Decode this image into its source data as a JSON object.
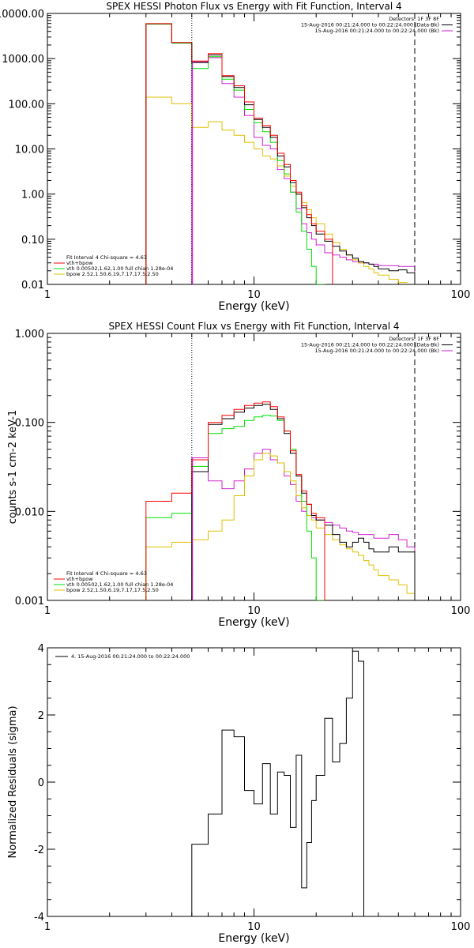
{
  "colors": {
    "data": "#000000",
    "vth": "#00e000",
    "fit": "#ff0000",
    "bpow": "#e0c000",
    "bk": "#d020d0"
  },
  "chart_data": [
    {
      "type": "line",
      "title": "SPEX HESSI Photon Flux vs Energy with Fit Function, Interval 4",
      "xlabel": "Energy (keV)",
      "ylabel": "",
      "xscale": "log",
      "yscale": "log",
      "xlim": [
        1,
        100
      ],
      "ylim": [
        0.01,
        10000
      ],
      "xticks": [
        "1",
        "10",
        "100"
      ],
      "yticks": [
        {
          "v": 0.01,
          "t": "0.01"
        },
        {
          "v": 0.1,
          "t": "0.10"
        },
        {
          "v": 1,
          "t": "1.00"
        },
        {
          "v": 10,
          "t": "10.00"
        },
        {
          "v": 100,
          "t": "100.00"
        },
        {
          "v": 1000,
          "t": "1000.00"
        },
        {
          "v": 10000,
          "t": "10000.00"
        }
      ],
      "vlines": [
        {
          "x": 5,
          "style": "dotted"
        },
        {
          "x": 60,
          "style": "dashed"
        }
      ],
      "magenta_line_x": 5,
      "legend_top": {
        "lines": [
          "Detectors: 1F 3F 8F",
          "15-Aug-2016 00:21:24.000 to 00:22:24.000 (Data-Bk)",
          "15-Aug-2016 00:21:24.000 to 00:22:24.000 (Bk)"
        ],
        "swatches": [
          "",
          "data",
          "bk"
        ]
      },
      "legend_bottom": {
        "lines": [
          "Fit Interval  4   Chi-square = 4.63",
          "vth+bpow",
          "vth 0.00502,1.62,1.00  full chian 1.28e-04",
          "bpow 2.52,1.50,6.19,7.17,17.5,2.50"
        ],
        "swatches": [
          "",
          "fit",
          "vth",
          "bpow"
        ]
      },
      "bin_edges": [
        3,
        4,
        5,
        6,
        7,
        8,
        9,
        10,
        11,
        12,
        13,
        14,
        15,
        16,
        17,
        18,
        19,
        20,
        22,
        24,
        26,
        28,
        30,
        32,
        34,
        36,
        38,
        40,
        45,
        50,
        55,
        60
      ],
      "series": [
        {
          "key": "bk",
          "color": "bk",
          "values": [
            null,
            null,
            850,
            1050,
            280,
            140,
            55,
            18,
            12,
            10,
            3.5,
            2.2,
            1.1,
            0.48,
            0.22,
            0.14,
            0.1,
            0.075,
            0.05,
            0.045,
            0.04,
            0.035,
            0.032,
            0.03,
            0.03,
            0.028,
            0.028,
            0.026,
            0.026,
            0.025,
            0.025
          ]
        },
        {
          "key": "bpow",
          "color": "bpow",
          "values": [
            140,
            100,
            30,
            40,
            26,
            20,
            14,
            10,
            7,
            6,
            4.2,
            2.5,
            1.5,
            1.0,
            0.65,
            0.45,
            0.3,
            0.22,
            0.13,
            0.085,
            0.06,
            0.045,
            0.035,
            0.03,
            0.025,
            0.022,
            0.018,
            0.016,
            0.013,
            0.011,
            0.009
          ]
        },
        {
          "key": "vth",
          "color": "vth",
          "values": [
            5800,
            2200,
            600,
            1100,
            350,
            200,
            75,
            38,
            24,
            14,
            5.5,
            2.8,
            1.1,
            0.4,
            0.15,
            0.06,
            0.025,
            0.01,
            null,
            null,
            null,
            null,
            null,
            null,
            null,
            null,
            null,
            null,
            null,
            null,
            null
          ]
        },
        {
          "key": "data",
          "color": "data",
          "values": [
            5900,
            2250,
            820,
            1200,
            400,
            230,
            95,
            45,
            30,
            18,
            7,
            4,
            1.8,
            1.0,
            0.5,
            0.3,
            0.2,
            0.13,
            0.09,
            0.07,
            0.055,
            0.045,
            0.038,
            0.032,
            0.03,
            0.028,
            0.025,
            0.022,
            0.02,
            0.021,
            0.018
          ]
        },
        {
          "key": "fit",
          "color": "fit",
          "values": [
            5950,
            2280,
            880,
            1300,
            420,
            250,
            110,
            48,
            33,
            20,
            8,
            4.5,
            2.0,
            1.1,
            0.55,
            0.35,
            0.22,
            0.15,
            0.1,
            null,
            null,
            null,
            null,
            null,
            null,
            null,
            null,
            null,
            null,
            null,
            null
          ]
        }
      ]
    },
    {
      "type": "line",
      "title": "SPEX HESSI Count Flux vs Energy with Fit Function, Interval 4",
      "xlabel": "Energy (keV)",
      "ylabel": "counts s-1 cm-2 keV-1",
      "xscale": "log",
      "yscale": "log",
      "xlim": [
        1,
        100
      ],
      "ylim": [
        0.001,
        1
      ],
      "xticks": [
        "1",
        "10",
        "100"
      ],
      "yticks": [
        {
          "v": 0.001,
          "t": "0.001"
        },
        {
          "v": 0.01,
          "t": "0.010"
        },
        {
          "v": 0.1,
          "t": "0.100"
        },
        {
          "v": 1,
          "t": "1.000"
        }
      ],
      "vlines": [
        {
          "x": 5,
          "style": "dotted"
        },
        {
          "x": 60,
          "style": "dashed"
        }
      ],
      "magenta_line_x": 5,
      "legend_top": {
        "lines": [
          "Detectors: 1F 3F 8F",
          "15-Aug-2016 00:21:24.000 to 00:22:24.000 (Data-Bk)",
          "15-Aug-2016 00:21:24.000 to 00:22:24.000 (Bk)"
        ],
        "swatches": [
          "",
          "data",
          "bk"
        ]
      },
      "legend_bottom": {
        "lines": [
          "Fit Interval  4   Chi-square = 4.63",
          "vth+bpow",
          "vth 0.00502,1.62,1.00  full chian 1.28e-04",
          "bpow 2.52,1.50,6.19,7.17,17.5,2.50"
        ],
        "swatches": [
          "",
          "fit",
          "vth",
          "bpow"
        ]
      },
      "bin_edges": [
        3,
        4,
        5,
        6,
        7,
        8,
        9,
        10,
        11,
        12,
        13,
        14,
        15,
        16,
        17,
        18,
        19,
        20,
        22,
        24,
        26,
        28,
        30,
        32,
        34,
        36,
        38,
        40,
        45,
        50,
        55,
        60,
        65,
        70
      ],
      "series": [
        {
          "key": "bk",
          "color": "bk",
          "values": [
            null,
            null,
            0.04,
            0.022,
            0.018,
            0.022,
            0.03,
            0.045,
            0.05,
            0.038,
            0.035,
            0.025,
            0.02,
            0.013,
            0.01,
            0.009,
            0.0085,
            0.008,
            0.0075,
            0.007,
            0.0065,
            0.006,
            0.0058,
            0.0055,
            0.0055,
            0.0055,
            0.005,
            0.005,
            0.0055,
            0.0048,
            0.004,
            null,
            null
          ]
        },
        {
          "key": "bpow",
          "color": "bpow",
          "values": [
            0.004,
            0.0045,
            0.0048,
            0.006,
            0.008,
            0.015,
            0.025,
            0.038,
            0.045,
            0.042,
            0.035,
            0.028,
            0.022,
            0.015,
            0.011,
            0.009,
            0.008,
            0.0065,
            0.0055,
            0.0048,
            0.0042,
            0.0038,
            0.0035,
            0.0032,
            0.0028,
            0.0025,
            0.0022,
            0.0019,
            0.0017,
            0.0015,
            0.0012,
            0.0009,
            0.0007
          ]
        },
        {
          "key": "vth",
          "color": "vth",
          "values": [
            0.0085,
            0.0095,
            0.032,
            0.075,
            0.085,
            0.09,
            0.105,
            0.115,
            0.12,
            0.118,
            0.105,
            0.08,
            0.05,
            0.025,
            0.013,
            0.006,
            0.003,
            0.001,
            null,
            null,
            null,
            null,
            null,
            null,
            null,
            null,
            null,
            null,
            null,
            null,
            null,
            null,
            null
          ]
        },
        {
          "key": "data",
          "color": "data",
          "values": [
            null,
            null,
            0.028,
            0.095,
            0.11,
            0.13,
            0.145,
            0.155,
            0.16,
            0.14,
            0.11,
            0.075,
            0.045,
            0.025,
            0.016,
            0.012,
            0.009,
            0.008,
            0.007,
            0.0055,
            0.0045,
            0.004,
            0.0045,
            0.005,
            0.0045,
            0.0038,
            0.0035,
            0.0035,
            0.004,
            0.0035,
            0.0035,
            null,
            null
          ]
        },
        {
          "key": "fit",
          "color": "fit",
          "values": [
            0.013,
            0.016,
            0.038,
            0.1,
            0.12,
            0.14,
            0.155,
            0.165,
            0.17,
            0.15,
            0.115,
            0.08,
            0.048,
            0.026,
            0.017,
            0.012,
            0.0095,
            0.0085,
            null,
            null,
            null,
            null,
            null,
            null,
            null,
            null,
            null,
            null,
            null,
            null,
            null,
            null,
            null
          ]
        }
      ]
    },
    {
      "type": "line",
      "title": "",
      "xlabel": "Energy (keV)",
      "ylabel": "Normalized Residuals (sigma)",
      "xscale": "log",
      "yscale": "linear",
      "xlim": [
        1,
        100
      ],
      "ylim": [
        -4,
        4
      ],
      "xticks": [
        "1",
        "10",
        "100"
      ],
      "yticks": [
        {
          "v": -4,
          "t": "-4"
        },
        {
          "v": -2,
          "t": "-2"
        },
        {
          "v": 0,
          "t": "0"
        },
        {
          "v": 2,
          "t": "2"
        },
        {
          "v": 4,
          "t": "4"
        }
      ],
      "legend_top": {
        "lines": [
          "4. 15-Aug-2016 00:21:24.000 to 00:22:24.000"
        ],
        "swatches": [
          "data"
        ]
      },
      "bin_edges": [
        5,
        6,
        7,
        8,
        9,
        10,
        11,
        12,
        13,
        14,
        15,
        16,
        17,
        18,
        19,
        20,
        22,
        24,
        26,
        28,
        30,
        32,
        34,
        36,
        38,
        40,
        45,
        50,
        55,
        60
      ],
      "series": [
        {
          "key": "resid",
          "color": "data",
          "values": [
            -1.85,
            -0.95,
            1.55,
            1.35,
            -0.25,
            -0.65,
            0.55,
            -0.95,
            0.3,
            0.2,
            -1.35,
            0.8,
            -3.15,
            -1.8,
            -0.55,
            0.2,
            1.9,
            0.6,
            1.15,
            2.5,
            3.9,
            3.6,
            null,
            null,
            null,
            null,
            null,
            null,
            null
          ]
        }
      ]
    }
  ]
}
